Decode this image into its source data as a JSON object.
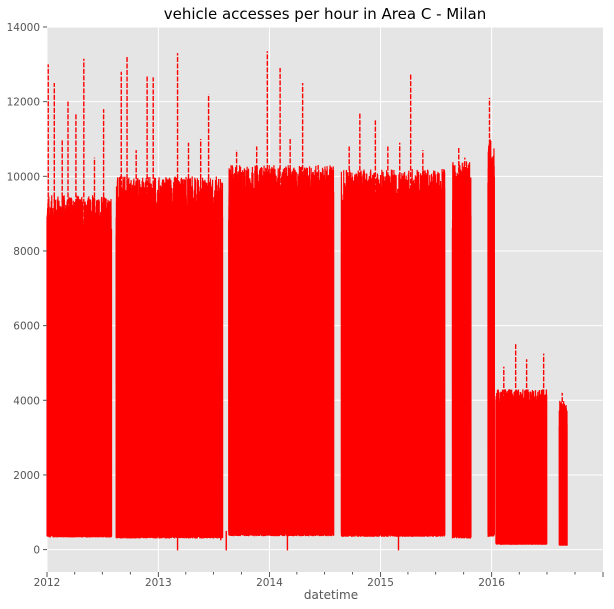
{
  "chart_data": {
    "type": "line",
    "title": "vehicle accesses per hour in Area C - Milan",
    "xlabel": "datetime",
    "ylabel": "",
    "x_range": [
      "2012-01-01",
      "2017-01-01"
    ],
    "ylim": [
      -600,
      14000
    ],
    "x_ticks": [
      "2012",
      "2013",
      "2014",
      "2015",
      "2016"
    ],
    "y_ticks": [
      "0",
      "2000",
      "4000",
      "6000",
      "8000",
      "10000",
      "12000",
      "14000"
    ],
    "grid": true,
    "legend": "none",
    "series": [
      {
        "color": "#ff0000",
        "segments": [
          {
            "start": "2012-01-01",
            "end": "2012-07-31",
            "low": 380,
            "high": 9500,
            "spikes": [
              [
                "2012-01-05",
                13000
              ],
              [
                "2012-01-25",
                12500
              ],
              [
                "2012-02-20",
                11000
              ],
              [
                "2012-03-10",
                12000
              ],
              [
                "2012-04-05",
                11700
              ],
              [
                "2012-05-01",
                13150
              ],
              [
                "2012-06-05",
                10500
              ],
              [
                "2012-07-05",
                11800
              ]
            ]
          },
          {
            "start": "2012-08-15",
            "end": "2013-07-31",
            "low": 350,
            "high": 10000,
            "spikes": [
              [
                "2012-09-01",
                12800
              ],
              [
                "2012-09-20",
                13200
              ],
              [
                "2012-10-20",
                10700
              ],
              [
                "2012-11-25",
                12700
              ],
              [
                "2012-12-15",
                12650
              ],
              [
                "2013-03-05",
                13300
              ],
              [
                "2013-04-10",
                10900
              ],
              [
                "2013-05-20",
                11000
              ],
              [
                "2013-06-15",
                12200
              ]
            ]
          },
          {
            "start": "2013-08-20",
            "end": "2014-07-31",
            "low": 420,
            "high": 10300,
            "spikes": [
              [
                "2013-09-15",
                10700
              ],
              [
                "2013-11-20",
                10800
              ],
              [
                "2013-12-25",
                13350
              ],
              [
                "2014-02-05",
                12900
              ],
              [
                "2014-03-10",
                11000
              ],
              [
                "2014-04-20",
                12500
              ],
              [
                "2014-06-10",
                10300
              ]
            ]
          },
          {
            "start": "2014-08-25",
            "end": "2015-07-31",
            "low": 400,
            "high": 10200,
            "spikes": [
              [
                "2014-09-20",
                10800
              ],
              [
                "2014-10-25",
                11700
              ],
              [
                "2014-12-15",
                11500
              ],
              [
                "2015-01-25",
                10800
              ],
              [
                "2015-03-05",
                10900
              ],
              [
                "2015-04-10",
                12750
              ],
              [
                "2015-05-20",
                10700
              ]
            ]
          },
          {
            "start": "2015-08-25",
            "end": "2015-10-25",
            "low": 350,
            "high": 10400,
            "spikes": [
              [
                "2015-09-15",
                10800
              ],
              [
                "2015-10-05",
                10500
              ]
            ]
          },
          {
            "start": "2015-12-20",
            "end": "2016-01-10",
            "low": 400,
            "high": 11000,
            "spikes": [
              [
                "2015-12-25",
                12100
              ],
              [
                "2016-01-05",
                8600
              ]
            ]
          },
          {
            "start": "2016-01-15",
            "end": "2016-06-30",
            "low": 150,
            "high": 4300,
            "spikes": [
              [
                "2016-02-10",
                4900
              ],
              [
                "2016-03-20",
                5500
              ],
              [
                "2016-04-25",
                5100
              ],
              [
                "2016-06-20",
                5250
              ]
            ]
          },
          {
            "start": "2016-08-10",
            "end": "2016-09-05",
            "low": 120,
            "high": 4000,
            "spikes": [
              [
                "2016-08-20",
                4200
              ]
            ]
          }
        ],
        "dips": [
          [
            "2013-03-05",
            -20
          ],
          [
            "2013-07-25",
            250
          ],
          [
            "2013-08-12",
            -20
          ],
          [
            "2014-03-01",
            -20
          ],
          [
            "2015-03-01",
            -20
          ]
        ]
      }
    ]
  }
}
